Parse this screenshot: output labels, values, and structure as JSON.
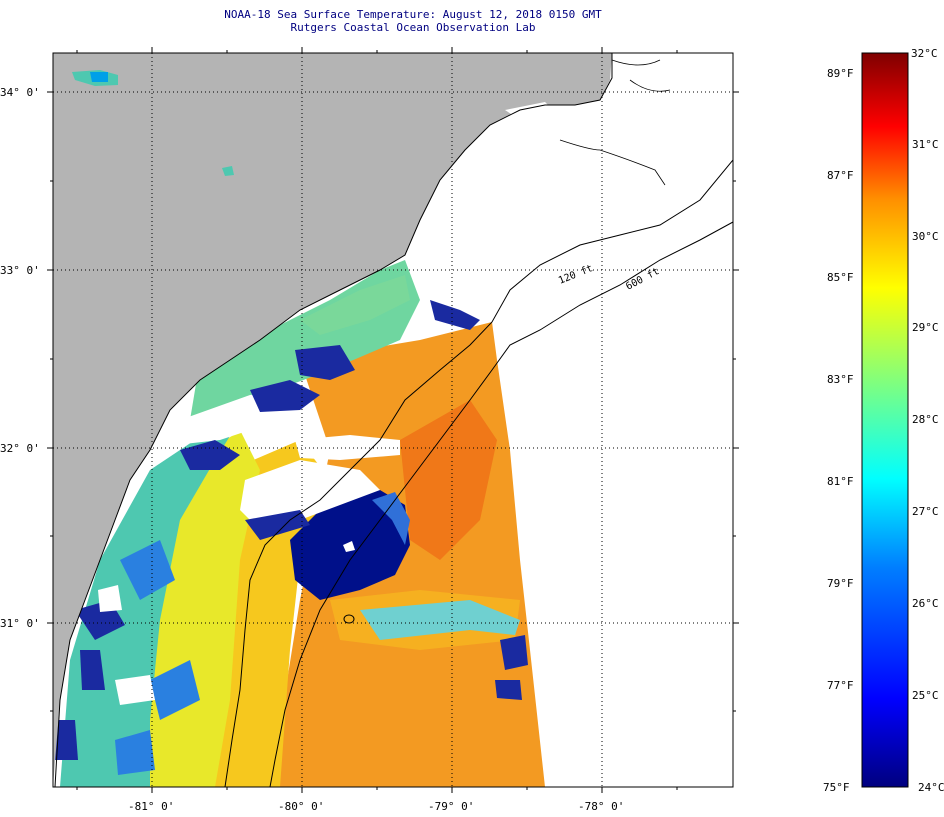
{
  "header": {
    "title": "NOAA-18 Sea Surface Temperature:  August 12, 2018 0150 GMT",
    "subtitle": "Rutgers Coastal Ocean Observation Lab"
  },
  "map": {
    "lat_labels": [
      "34° 0'",
      "33° 0'",
      "32° 0'",
      "31° 0'"
    ],
    "lon_labels": [
      "-81° 0'",
      "-80° 0'",
      "-79° 0'",
      "-78° 0'"
    ],
    "contour_labels": [
      "120 ft",
      "600 ft"
    ],
    "colors": {
      "land": "#b4b4b4",
      "no_data": "#ffffff",
      "cloud": "#ffffff"
    }
  },
  "colorbar": {
    "fahrenheit_labels": [
      "89°F",
      "87°F",
      "85°F",
      "83°F",
      "81°F",
      "79°F",
      "77°F",
      "75°F"
    ],
    "celsius_labels": [
      "32°C",
      "31°C",
      "30°C",
      "29°C",
      "28°C",
      "27°C",
      "26°C",
      "25°C",
      "24°C"
    ],
    "range_c": [
      24,
      32
    ],
    "colors": [
      "#00007f",
      "#0000ff",
      "#007fff",
      "#00ffff",
      "#7fff7f",
      "#ffff00",
      "#ff7f00",
      "#ff0000",
      "#7f0000"
    ]
  }
}
